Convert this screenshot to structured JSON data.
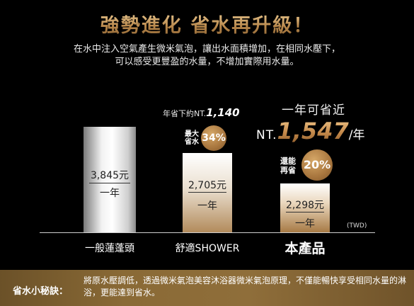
{
  "header": {
    "title": "強勢進化 省水再升級！",
    "subtitle_line1": "在水中注入空氣產生微米氣泡，讓出水面積增加，在相同水壓下，",
    "subtitle_line2": "可以感受更豐盈的水量，不增加實際用水量。"
  },
  "chart_data": {
    "type": "bar",
    "categories": [
      "一般蓮蓬頭",
      "舒適SHOWER",
      "本產品"
    ],
    "values": [
      3845,
      2705,
      2298
    ],
    "value_labels": [
      "3,845元",
      "2,705元",
      "2,298元"
    ],
    "unit_label": "一年",
    "currency_note": "(TWD)",
    "colors": [
      "#e8e8e8",
      "#c9a57a",
      "#b3834d"
    ]
  },
  "annotations": {
    "shower_saving_prefix": "年省下約NT.",
    "shower_saving_value": "1,140",
    "shower_badge_label_1": "最大",
    "shower_badge_label_2": "省水",
    "shower_badge_percent": "34%",
    "product_head": "一年可省近",
    "product_currency": "NT.",
    "product_amount": "1,547",
    "product_per": "/年",
    "product_badge_label_1": "還能",
    "product_badge_label_2": "再省",
    "product_badge_percent": "20%"
  },
  "footer": {
    "label": "省水小秘訣：",
    "text": "將原水壓調低，透過微米氣泡美容沐浴器微米氣泡原理，不僅能暢快享受相同水量的淋浴，更能達到省水。"
  }
}
